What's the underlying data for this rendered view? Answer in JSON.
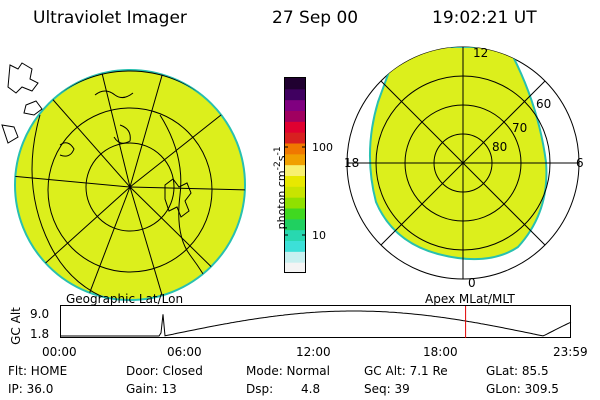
{
  "header": {
    "title": "Ultraviolet Imager",
    "date": "27 Sep 00",
    "time": "19:02:21 UT"
  },
  "geo_panel": {
    "caption": "Geographic Lat/Lon"
  },
  "polar_panel": {
    "caption": "Apex MLat/MLT",
    "mlt_labels": {
      "top": "12",
      "right": "6",
      "bottom": "0",
      "left": "18"
    },
    "lat_labels": [
      "60",
      "70",
      "80"
    ]
  },
  "colorbar": {
    "unit_label_html": "photon cm<sup>-2</sup>s<sup>-1</sup>",
    "ticks": [
      "100",
      "10"
    ],
    "colors": [
      "#f4f4f4",
      "#c8f0f0",
      "#3ce0d8",
      "#28d8b0",
      "#20d060",
      "#40d820",
      "#90e000",
      "#c8e400",
      "#e8e800",
      "#f8f070",
      "#f0a000",
      "#f07800",
      "#d82020",
      "#e00030",
      "#a00060",
      "#800080",
      "#400060",
      "#200030"
    ]
  },
  "altitude_plot": {
    "ylabel": "GC Alt",
    "y_ticks": [
      "9.0",
      "1.8"
    ],
    "x_ticks": [
      "00:00",
      "06:00",
      "12:00",
      "18:00",
      "23:59"
    ],
    "current_time_hours": 19.04
  },
  "footer": {
    "flt": "Flt: HOME",
    "ip": "IP: 36.0",
    "door": "Door: Closed",
    "gain": "Gain: 13",
    "mode": "Mode: Normal",
    "dsp_label": "Dsp:",
    "dsp_value": "4.8",
    "gc_alt": "GC Alt: 7.1 Re",
    "seq": "Seq: 39",
    "glat": "GLat:  85.5",
    "glon": "GLon: 309.5"
  }
}
